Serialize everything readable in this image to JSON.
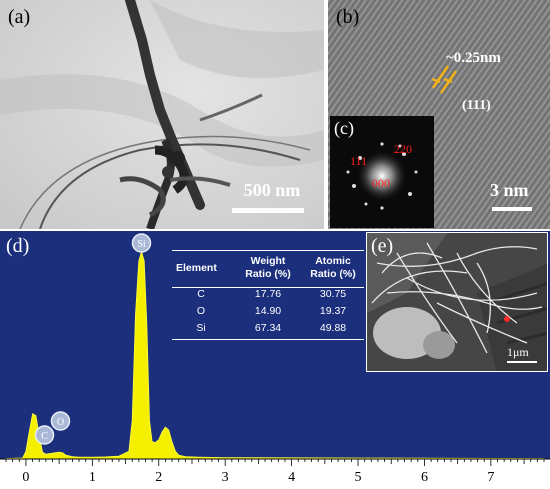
{
  "panels": {
    "a": {
      "label": "(a)",
      "scale_bar": "500 nm"
    },
    "b": {
      "label": "(b)",
      "spacing": "~0.25nm",
      "plane": "(111)",
      "scale_bar": "3 nm"
    },
    "c": {
      "label": "(c)",
      "spots": [
        "111",
        "220",
        "000"
      ]
    },
    "d": {
      "label": "(d)"
    },
    "e": {
      "label": "(e)",
      "scale_bar": "1μm"
    }
  },
  "eds_table": {
    "headers": [
      "Element",
      "Weight\nRatio (%)",
      "Atomic\nRatio (%)"
    ],
    "rows": [
      [
        "C",
        "17.76",
        "30.75"
      ],
      [
        "O",
        "14.90",
        "19.37"
      ],
      [
        "Si",
        "67.34",
        "49.88"
      ]
    ]
  },
  "chart_data": {
    "type": "line",
    "title": "",
    "xlabel": "",
    "ylabel": "",
    "xlim": [
      -0.3,
      7.8
    ],
    "xticks": [
      0,
      1,
      2,
      3,
      4,
      5,
      6,
      7
    ],
    "peaks": [
      {
        "element": "C",
        "x": 0.28
      },
      {
        "element": "O",
        "x": 0.52
      },
      {
        "element": "Si",
        "x": 1.74
      }
    ],
    "series": [
      {
        "x": [
          -0.3,
          -0.05,
          0.0,
          0.05,
          0.1,
          0.15,
          0.2,
          0.25,
          0.3,
          0.35,
          0.4,
          0.5,
          0.55,
          0.6,
          0.7,
          0.8,
          1.0,
          1.2,
          1.4,
          1.55,
          1.6,
          1.65,
          1.7,
          1.74,
          1.78,
          1.82,
          1.86,
          1.9,
          1.95,
          2.0,
          2.05,
          2.1,
          2.15,
          2.2,
          2.25,
          2.3,
          2.4,
          2.6,
          3.0,
          4.0,
          5.0,
          6.0,
          7.0,
          7.8
        ],
        "y": [
          0.5,
          1.0,
          8.0,
          28.0,
          47.0,
          45.0,
          25.0,
          7.0,
          5.0,
          5.5,
          6.0,
          7.0,
          6.5,
          4.0,
          2.5,
          2.0,
          2.0,
          2.2,
          3.0,
          8.0,
          40.0,
          150.0,
          205.0,
          215.0,
          205.0,
          140.0,
          40.0,
          18.0,
          17.0,
          20.0,
          28.0,
          33.0,
          30.0,
          18.0,
          8.0,
          4.0,
          2.5,
          2.0,
          1.5,
          1.2,
          1.0,
          0.8,
          0.6,
          0.5
        ]
      }
    ]
  }
}
